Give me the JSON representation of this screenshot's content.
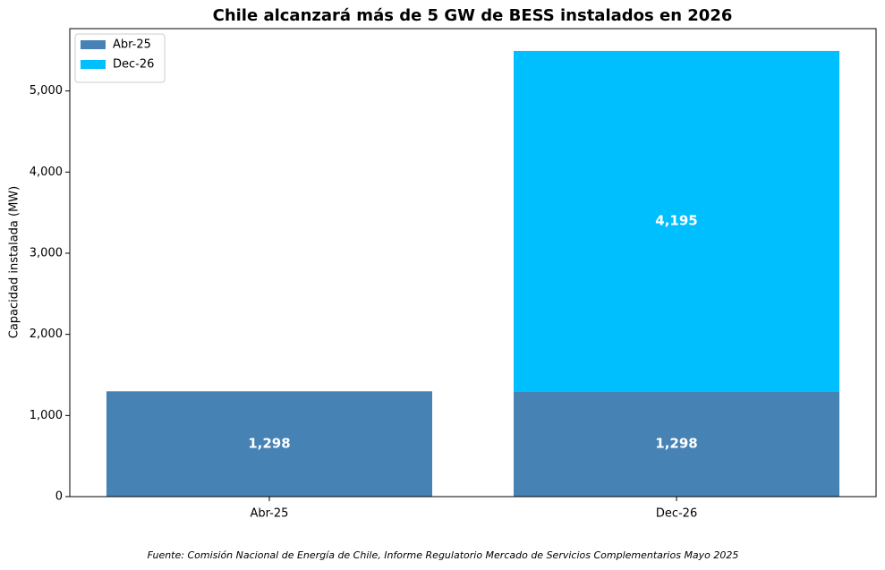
{
  "chart_data": {
    "type": "stacked_bar",
    "title": "Chile alcanzará más de 5 GW de BESS instalados en 2026",
    "y_label": "Capacidad instalada (MW)",
    "source": "Fuente: Comisión Nacional de Energía de Chile, Informe Regulatorio Mercado de Servicios Complementarios Mayo 2025",
    "categories": [
      "Abr-25",
      "Dec-26"
    ],
    "series": [
      {
        "name": "Abr-25",
        "color": "#4682b4",
        "values": [
          1298,
          1298
        ],
        "value_labels": [
          "1,298",
          "1,298"
        ]
      },
      {
        "name": "Dec-26",
        "color": "#00bfff",
        "values": [
          null,
          4195
        ],
        "value_labels": [
          null,
          "4,195"
        ]
      }
    ],
    "ylim": [
      0,
      5768
    ],
    "yticks": [
      0,
      {
        "value": 1000,
        "label": "1,000"
      },
      {
        "value": 2000,
        "label": "2,000"
      },
      {
        "value": 3000,
        "label": "3,000"
      },
      {
        "value": 4000,
        "label": "4,000"
      },
      {
        "value": 5000,
        "label": "5,000"
      }
    ],
    "legend": "upper-left"
  }
}
